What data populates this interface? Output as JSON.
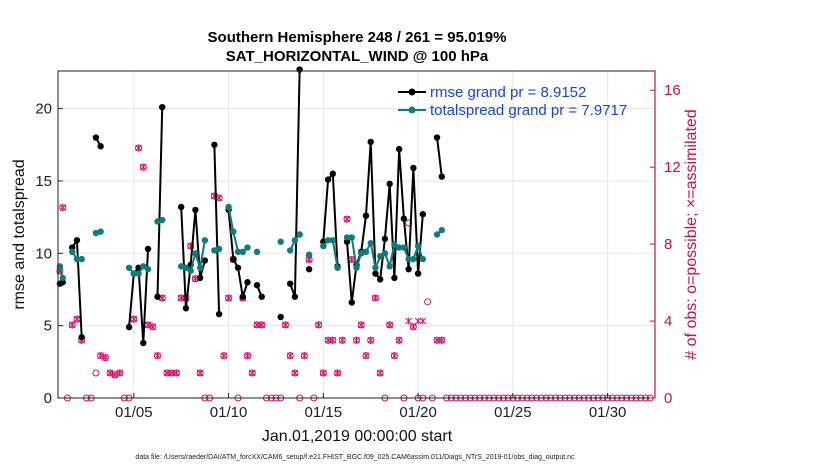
{
  "chart_data": {
    "type": "line",
    "title_line1": "Southern Hemisphere 248 / 261 = 95.019%",
    "title_line2": "SAT_HORIZONTAL_WIND @ 100 hPa",
    "ylabel_left": "rmse and totalspread",
    "ylabel_right": "# of obs: o=possible; ×=assimilated",
    "xlabel": "Jan.01,2019 00:00:00 start",
    "footnote": "data file: /Users/raeder/DAI/ATM_forcXX/CAM6_setup/f.e21.FHIST_BGC.f09_025.CAM6assim.011/Diags_NTrS_2019-01/obs_diag_output.nc",
    "xlim": [
      1,
      32.5
    ],
    "ylim_left": [
      0,
      22.6
    ],
    "ylim_right": [
      0,
      17.0
    ],
    "x_ticks": [
      5,
      10,
      15,
      20,
      25,
      30
    ],
    "x_tick_labels": [
      "01/05",
      "01/10",
      "01/15",
      "01/20",
      "01/25",
      "01/30"
    ],
    "y_left_ticks": [
      0,
      5,
      10,
      15,
      20
    ],
    "y_right_ticks": [
      0,
      4,
      8,
      12,
      16
    ],
    "grid": true,
    "legend_position": "top-right",
    "colors": {
      "rmse": "#000000",
      "totalspread": "#0b7d7d",
      "obs": "#d0106a",
      "legend_text": "#1747d6",
      "right_axis": "#c8104f"
    },
    "series": [
      {
        "name": "rmse grand pr = 8.9152",
        "axis": "left",
        "segments": [
          [
            [
              1.1,
              7.9
            ],
            [
              1.25,
              8.0
            ]
          ],
          [
            [
              1.75,
              10.4
            ],
            [
              2.0,
              10.9
            ],
            [
              2.25,
              4.2
            ]
          ],
          [
            [
              3.0,
              18.0
            ],
            [
              3.25,
              17.4
            ]
          ],
          [
            [
              4.75,
              4.9
            ],
            [
              5.0,
              8.6
            ],
            [
              5.25,
              9.0
            ],
            [
              5.5,
              3.8
            ],
            [
              5.75,
              10.3
            ]
          ],
          [
            [
              6.25,
              7.0
            ],
            [
              6.5,
              20.1
            ]
          ],
          [
            [
              7.5,
              13.2
            ],
            [
              7.75,
              6.2
            ],
            [
              8.0,
              9.2
            ],
            [
              8.25,
              13.0
            ],
            [
              8.5,
              8.3
            ],
            [
              8.75,
              9.5
            ]
          ],
          [
            [
              9.25,
              17.5
            ],
            [
              9.5,
              5.8
            ]
          ],
          [
            [
              10.0,
              13.0
            ],
            [
              10.25,
              9.6
            ],
            [
              10.5,
              9.0
            ],
            [
              10.75,
              7.0
            ],
            [
              11.0,
              8.0
            ]
          ],
          [
            [
              11.5,
              7.8
            ],
            [
              11.75,
              7.0
            ]
          ],
          [
            [
              12.75,
              5.6
            ]
          ],
          [
            [
              13.25,
              7.9
            ],
            [
              13.5,
              7.0
            ],
            [
              13.75,
              22.7
            ]
          ],
          [
            [
              14.25,
              8.9
            ]
          ],
          [
            [
              15.0,
              10.8
            ],
            [
              15.25,
              15.1
            ],
            [
              15.5,
              15.5
            ],
            [
              15.75,
              9.1
            ]
          ],
          [
            [
              16.25,
              10.8
            ],
            [
              16.5,
              6.6
            ],
            [
              16.75,
              9.2
            ],
            [
              17.0,
              10.1
            ],
            [
              17.25,
              12.6
            ],
            [
              17.5,
              17.7
            ],
            [
              17.75,
              8.6
            ],
            [
              18.0,
              8.2
            ],
            [
              18.25,
              11.0
            ],
            [
              18.5,
              14.8
            ],
            [
              18.75,
              8.3
            ],
            [
              19.0,
              17.2
            ],
            [
              19.25,
              12.4
            ],
            [
              19.5,
              8.9
            ],
            [
              19.75,
              15.9
            ],
            [
              20.0,
              8.6
            ],
            [
              20.25,
              12.7
            ]
          ],
          [
            [
              21.0,
              18.0
            ],
            [
              21.25,
              15.3
            ]
          ]
        ]
      },
      {
        "name": "totalspread grand pr = 7.9717",
        "axis": "left",
        "segments": [
          [
            [
              1.1,
              9.1
            ],
            [
              1.25,
              8.3
            ]
          ],
          [
            [
              1.75,
              10.1
            ],
            [
              2.0,
              9.6
            ],
            [
              2.25,
              9.6
            ]
          ],
          [
            [
              3.0,
              11.4
            ],
            [
              3.25,
              11.5
            ]
          ],
          [
            [
              4.75,
              9.0
            ],
            [
              5.0,
              8.6
            ],
            [
              5.25,
              8.6
            ],
            [
              5.5,
              9.1
            ],
            [
              5.75,
              8.9
            ]
          ],
          [
            [
              6.25,
              12.2
            ],
            [
              6.5,
              12.3
            ]
          ],
          [
            [
              7.5,
              9.1
            ],
            [
              7.75,
              9.0
            ],
            [
              8.0,
              8.8
            ],
            [
              8.25,
              10.0
            ],
            [
              8.5,
              9.0
            ],
            [
              8.75,
              10.9
            ]
          ],
          [
            [
              9.25,
              10.2
            ],
            [
              9.5,
              10.3
            ]
          ],
          [
            [
              10.0,
              13.2
            ],
            [
              10.25,
              11.5
            ],
            [
              10.5,
              10.1
            ],
            [
              10.75,
              10.1
            ],
            [
              11.0,
              10.4
            ]
          ],
          [
            [
              11.5,
              10.1
            ]
          ],
          [
            [
              12.75,
              10.8
            ]
          ],
          [
            [
              13.25,
              10.2
            ],
            [
              13.5,
              10.9
            ],
            [
              13.75,
              11.3
            ]
          ],
          [
            [
              14.25,
              9.9
            ]
          ],
          [
            [
              15.0,
              10.5
            ],
            [
              15.25,
              10.9
            ],
            [
              15.5,
              10.9
            ],
            [
              15.75,
              9.0
            ]
          ],
          [
            [
              16.25,
              11.1
            ],
            [
              16.5,
              11.1
            ],
            [
              16.75,
              9.0
            ],
            [
              17.0,
              10.0
            ],
            [
              17.25,
              10.1
            ],
            [
              17.5,
              10.7
            ],
            [
              17.75,
              9.0
            ],
            [
              18.0,
              9.8
            ],
            [
              18.25,
              10.0
            ],
            [
              18.5,
              9.1
            ],
            [
              18.75,
              10.6
            ],
            [
              19.0,
              10.4
            ],
            [
              19.25,
              10.4
            ],
            [
              19.5,
              9.6
            ],
            [
              19.75,
              9.6
            ],
            [
              20.0,
              10.5
            ],
            [
              20.25,
              9.6
            ]
          ],
          [
            [
              21.0,
              11.3
            ],
            [
              21.25,
              11.6
            ]
          ]
        ]
      }
    ],
    "obs_possible": [
      [
        1.1,
        6.6
      ],
      [
        1.25,
        9.9
      ],
      [
        1.5,
        0
      ],
      [
        1.75,
        3.8
      ],
      [
        2.0,
        4.1
      ],
      [
        2.25,
        3.0
      ],
      [
        2.5,
        0
      ],
      [
        2.75,
        0
      ],
      [
        3.0,
        1.3
      ],
      [
        3.25,
        2.2
      ],
      [
        3.5,
        2.1
      ],
      [
        3.75,
        1.3
      ],
      [
        4.0,
        1.2
      ],
      [
        4.25,
        1.3
      ],
      [
        4.5,
        0
      ],
      [
        4.75,
        0
      ],
      [
        5.0,
        4.1
      ],
      [
        5.25,
        13.0
      ],
      [
        5.5,
        12.0
      ],
      [
        5.75,
        3.8
      ],
      [
        6.0,
        3.7
      ],
      [
        6.25,
        2.2
      ],
      [
        6.5,
        5.2
      ],
      [
        6.75,
        1.3
      ],
      [
        7.0,
        1.3
      ],
      [
        7.25,
        1.3
      ],
      [
        7.5,
        5.2
      ],
      [
        7.75,
        5.2
      ],
      [
        8.0,
        7.9
      ],
      [
        8.25,
        6.2
      ],
      [
        8.5,
        1.3
      ],
      [
        8.75,
        0
      ],
      [
        9.0,
        0
      ],
      [
        9.25,
        10.5
      ],
      [
        9.5,
        10.4
      ],
      [
        9.75,
        2.2
      ],
      [
        10.0,
        5.2
      ],
      [
        10.25,
        7.2
      ],
      [
        10.5,
        0
      ],
      [
        10.75,
        5.2
      ],
      [
        11.0,
        2.2
      ],
      [
        11.25,
        1.3
      ],
      [
        11.5,
        3.8
      ],
      [
        11.75,
        3.8
      ],
      [
        12.0,
        0
      ],
      [
        12.25,
        0
      ],
      [
        12.5,
        0
      ],
      [
        12.75,
        0
      ],
      [
        13.0,
        3.8
      ],
      [
        13.25,
        2.2
      ],
      [
        13.5,
        1.3
      ],
      [
        13.75,
        0
      ],
      [
        14.0,
        2.2
      ],
      [
        14.25,
        7.2
      ],
      [
        14.5,
        0
      ],
      [
        14.75,
        3.8
      ],
      [
        15.0,
        1.3
      ],
      [
        15.25,
        3.0
      ],
      [
        15.5,
        3.0
      ],
      [
        15.75,
        1.3
      ],
      [
        16.0,
        3.0
      ],
      [
        16.25,
        9.3
      ],
      [
        16.5,
        7.2
      ],
      [
        16.75,
        3.0
      ],
      [
        17.0,
        3.8
      ],
      [
        17.25,
        2.2
      ],
      [
        17.5,
        3.0
      ],
      [
        17.75,
        5.2
      ],
      [
        18.0,
        1.3
      ],
      [
        18.25,
        0
      ],
      [
        18.5,
        3.8
      ],
      [
        18.75,
        2.2
      ],
      [
        19.0,
        3.0
      ],
      [
        19.25,
        0
      ],
      [
        19.5,
        9.1
      ],
      [
        19.75,
        3.7
      ],
      [
        20.0,
        0
      ],
      [
        20.25,
        0
      ],
      [
        20.5,
        5.0
      ],
      [
        20.75,
        0
      ],
      [
        21.0,
        3.0
      ],
      [
        21.25,
        3.0
      ],
      [
        21.5,
        0
      ],
      [
        21.75,
        0
      ],
      [
        22.0,
        0
      ],
      [
        22.25,
        0
      ],
      [
        22.5,
        0
      ],
      [
        22.75,
        0
      ],
      [
        23.0,
        0
      ],
      [
        23.25,
        0
      ],
      [
        23.5,
        0
      ],
      [
        23.75,
        0
      ],
      [
        24.0,
        0
      ],
      [
        24.25,
        0
      ],
      [
        24.5,
        0
      ],
      [
        24.75,
        0
      ],
      [
        25.0,
        0
      ],
      [
        25.25,
        0
      ],
      [
        25.5,
        0
      ],
      [
        25.75,
        0
      ],
      [
        26.0,
        0
      ],
      [
        26.25,
        0
      ],
      [
        26.5,
        0
      ],
      [
        26.75,
        0
      ],
      [
        27.0,
        0
      ],
      [
        27.25,
        0
      ],
      [
        27.5,
        0
      ],
      [
        27.75,
        0
      ],
      [
        28.0,
        0
      ],
      [
        28.25,
        0
      ],
      [
        28.5,
        0
      ],
      [
        28.75,
        0
      ],
      [
        29.0,
        0
      ],
      [
        29.25,
        0
      ],
      [
        29.5,
        0
      ],
      [
        29.75,
        0
      ],
      [
        30.0,
        0
      ],
      [
        30.25,
        0
      ],
      [
        30.5,
        0
      ],
      [
        30.75,
        0
      ],
      [
        31.0,
        0
      ],
      [
        31.25,
        0
      ],
      [
        31.5,
        0
      ],
      [
        31.75,
        0
      ],
      [
        32.0,
        0
      ],
      [
        32.25,
        0
      ]
    ],
    "obs_assimilated": [
      [
        1.1,
        6.6
      ],
      [
        1.25,
        9.9
      ],
      [
        1.75,
        3.8
      ],
      [
        2.0,
        4.1
      ],
      [
        2.25,
        3.0
      ],
      [
        3.25,
        2.2
      ],
      [
        3.5,
        2.1
      ],
      [
        3.75,
        1.3
      ],
      [
        4.0,
        1.2
      ],
      [
        4.25,
        1.3
      ],
      [
        5.0,
        4.1
      ],
      [
        5.25,
        13.0
      ],
      [
        5.5,
        12.0
      ],
      [
        5.75,
        3.8
      ],
      [
        6.0,
        3.7
      ],
      [
        6.25,
        2.2
      ],
      [
        6.5,
        5.2
      ],
      [
        6.75,
        1.3
      ],
      [
        7.0,
        1.3
      ],
      [
        7.25,
        1.3
      ],
      [
        7.5,
        5.2
      ],
      [
        7.75,
        5.2
      ],
      [
        8.0,
        7.9
      ],
      [
        8.25,
        6.2
      ],
      [
        8.5,
        1.3
      ],
      [
        9.25,
        10.5
      ],
      [
        9.5,
        10.4
      ],
      [
        9.75,
        2.2
      ],
      [
        10.0,
        5.2
      ],
      [
        10.25,
        7.2
      ],
      [
        10.75,
        5.2
      ],
      [
        11.0,
        2.2
      ],
      [
        11.25,
        1.3
      ],
      [
        11.5,
        3.8
      ],
      [
        11.75,
        3.8
      ],
      [
        13.0,
        3.8
      ],
      [
        13.25,
        2.2
      ],
      [
        13.5,
        1.3
      ],
      [
        14.0,
        2.2
      ],
      [
        14.25,
        7.2
      ],
      [
        14.75,
        3.8
      ],
      [
        15.0,
        1.3
      ],
      [
        15.25,
        3.0
      ],
      [
        15.5,
        3.0
      ],
      [
        15.75,
        1.3
      ],
      [
        16.0,
        3.0
      ],
      [
        16.25,
        9.3
      ],
      [
        16.5,
        7.2
      ],
      [
        16.75,
        3.0
      ],
      [
        17.0,
        3.8
      ],
      [
        17.25,
        2.2
      ],
      [
        17.5,
        3.0
      ],
      [
        17.75,
        5.2
      ],
      [
        18.0,
        1.3
      ],
      [
        18.5,
        3.8
      ],
      [
        18.75,
        2.2
      ],
      [
        19.0,
        3.0
      ],
      [
        19.5,
        4.0
      ],
      [
        19.75,
        3.7
      ],
      [
        20.0,
        4.0
      ],
      [
        20.25,
        4.0
      ],
      [
        21.0,
        3.0
      ],
      [
        21.25,
        3.0
      ]
    ]
  }
}
